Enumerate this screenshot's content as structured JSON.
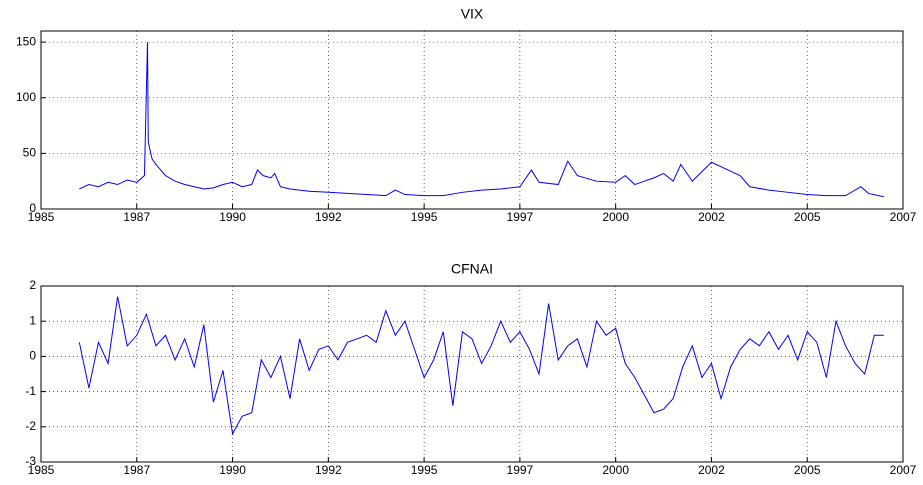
{
  "chart_data": [
    {
      "type": "line",
      "title": "VIX",
      "x": [
        1986.0,
        1986.25,
        1986.5,
        1986.75,
        1987.0,
        1987.25,
        1987.5,
        1987.7,
        1987.78,
        1987.8,
        1987.9,
        1988.0,
        1988.25,
        1988.5,
        1988.75,
        1989.0,
        1989.25,
        1989.5,
        1989.75,
        1990.0,
        1990.25,
        1990.5,
        1990.65,
        1990.8,
        1991.0,
        1991.1,
        1991.25,
        1991.5,
        1991.75,
        1992.0,
        1992.5,
        1993.0,
        1993.5,
        1994.0,
        1994.25,
        1994.5,
        1995.0,
        1995.5,
        1996.0,
        1996.5,
        1997.0,
        1997.5,
        1997.8,
        1998.0,
        1998.5,
        1998.75,
        1999.0,
        1999.5,
        2000.0,
        2000.25,
        2000.5,
        2000.75,
        2001.0,
        2001.25,
        2001.5,
        2001.7,
        2001.9,
        2002.0,
        2002.5,
        2002.75,
        2003.0,
        2003.25,
        2003.5,
        2004.0,
        2004.5,
        2005.0,
        2005.5,
        2006.0,
        2006.4,
        2006.6,
        2007.0
      ],
      "series": [
        {
          "name": "VIX",
          "color": "#0000ff",
          "values": [
            18,
            22,
            20,
            24,
            22,
            26,
            24,
            30,
            150,
            60,
            45,
            40,
            30,
            25,
            22,
            20,
            18,
            19,
            22,
            24,
            20,
            22,
            35,
            30,
            28,
            32,
            20,
            18,
            17,
            16,
            15,
            14,
            13,
            12,
            17,
            13,
            12,
            12,
            15,
            17,
            18,
            20,
            35,
            24,
            22,
            43,
            30,
            25,
            24,
            30,
            22,
            25,
            28,
            32,
            25,
            40,
            30,
            25,
            42,
            38,
            34,
            30,
            20,
            17,
            15,
            13,
            12,
            12,
            20,
            14,
            11
          ]
        }
      ],
      "xlim": [
        1985,
        2007.5
      ],
      "xticks": [
        1985,
        {
          "value": 1987.5,
          "label": "1987"
        },
        1990,
        {
          "value": 1992.5,
          "label": "1992"
        },
        1995,
        {
          "value": 1997.5,
          "label": "1997"
        },
        2000,
        {
          "value": 2002.5,
          "label": "2002"
        },
        2005,
        {
          "value": 2007.5,
          "label": "2007"
        }
      ],
      "ylim": [
        0,
        160
      ],
      "yticks": [
        0,
        50,
        100,
        150
      ],
      "grid": true
    },
    {
      "type": "line",
      "title": "CFNAI",
      "x": [
        1986.0,
        1986.25,
        1986.5,
        1986.75,
        1987.0,
        1987.25,
        1987.5,
        1987.75,
        1988.0,
        1988.25,
        1988.5,
        1988.75,
        1989.0,
        1989.25,
        1989.5,
        1989.75,
        1990.0,
        1990.25,
        1990.5,
        1990.75,
        1991.0,
        1991.25,
        1991.5,
        1991.75,
        1992.0,
        1992.25,
        1992.5,
        1992.75,
        1993.0,
        1993.25,
        1993.5,
        1993.75,
        1994.0,
        1994.25,
        1994.5,
        1994.75,
        1995.0,
        1995.25,
        1995.5,
        1995.75,
        1996.0,
        1996.25,
        1996.5,
        1996.75,
        1997.0,
        1997.25,
        1997.5,
        1997.75,
        1998.0,
        1998.25,
        1998.5,
        1998.75,
        1999.0,
        1999.25,
        1999.5,
        1999.75,
        2000.0,
        2000.25,
        2000.5,
        2000.75,
        2001.0,
        2001.25,
        2001.5,
        2001.75,
        2002.0,
        2002.25,
        2002.5,
        2002.75,
        2003.0,
        2003.25,
        2003.5,
        2003.75,
        2004.0,
        2004.25,
        2004.5,
        2004.75,
        2005.0,
        2005.25,
        2005.5,
        2005.75,
        2006.0,
        2006.25,
        2006.5,
        2006.75,
        2007.0
      ],
      "series": [
        {
          "name": "CFNAI",
          "color": "#0000ff",
          "values": [
            0.4,
            -0.9,
            0.4,
            -0.2,
            1.7,
            0.3,
            0.6,
            1.2,
            0.3,
            0.6,
            -0.1,
            0.5,
            -0.3,
            0.9,
            -1.3,
            -0.4,
            -2.2,
            -1.7,
            -1.6,
            -0.1,
            -0.6,
            0.0,
            -1.2,
            0.5,
            -0.4,
            0.2,
            0.3,
            -0.1,
            0.4,
            0.5,
            0.6,
            0.4,
            1.3,
            0.6,
            1.0,
            0.2,
            -0.6,
            -0.1,
            0.7,
            -1.4,
            0.7,
            0.5,
            -0.2,
            0.3,
            1.0,
            0.4,
            0.7,
            0.2,
            -0.5,
            1.5,
            -0.1,
            0.3,
            0.5,
            -0.3,
            1.0,
            0.6,
            0.8,
            -0.2,
            -0.6,
            -1.1,
            -1.6,
            -1.5,
            -1.2,
            -0.3,
            0.3,
            -0.6,
            -0.2,
            -1.2,
            -0.3,
            0.2,
            0.5,
            0.3,
            0.7,
            0.2,
            0.6,
            -0.1,
            0.7,
            0.4,
            -0.6,
            1.0,
            0.3,
            -0.2,
            -0.5,
            0.6,
            0.6
          ]
        }
      ],
      "xlim": [
        1985,
        2007.5
      ],
      "xticks": [
        1985,
        {
          "value": 1987.5,
          "label": "1987"
        },
        1990,
        {
          "value": 1992.5,
          "label": "1992"
        },
        1995,
        {
          "value": 1997.5,
          "label": "1997"
        },
        2000,
        {
          "value": 2002.5,
          "label": "2002"
        },
        2005,
        {
          "value": 2007.5,
          "label": "2007"
        }
      ],
      "ylim": [
        -3,
        2
      ],
      "yticks": [
        -3,
        -2,
        -1,
        0,
        1,
        2
      ],
      "grid": true
    }
  ]
}
